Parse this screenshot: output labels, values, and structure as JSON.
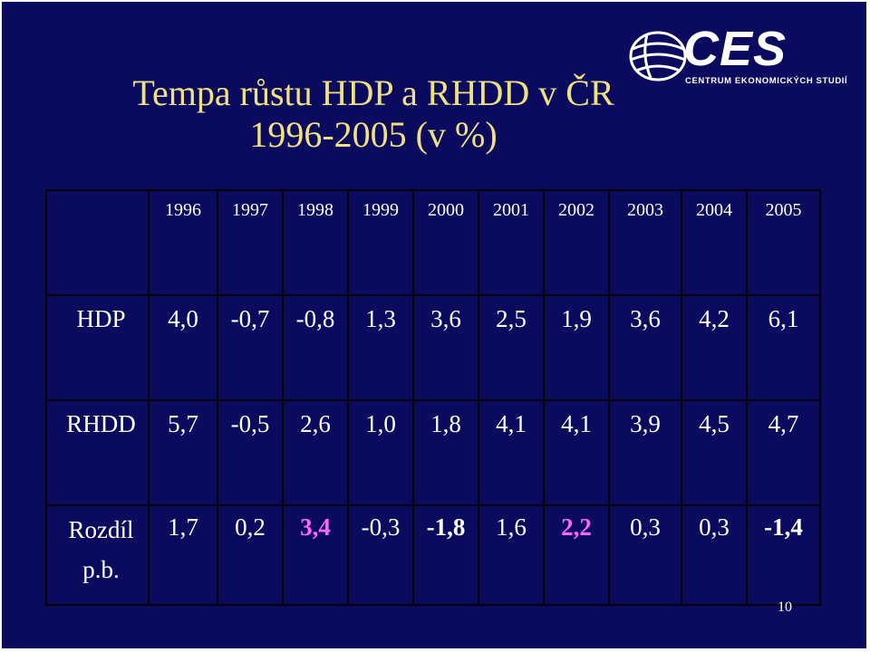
{
  "title": {
    "line1": "Tempa růstu HDP a RHDD v ČR",
    "line2": "1996-2005 (v %)"
  },
  "logo": {
    "name": "CES",
    "subtitle": "CENTRUM EKONOMICKÝCH STUDIÍ"
  },
  "table": {
    "years": [
      "1996",
      "1997",
      "1998",
      "1999",
      "2000",
      "2001",
      "2002",
      "2003",
      "2004",
      "2005"
    ],
    "rows": [
      {
        "label": "HDP",
        "values": [
          "4,0",
          "-0,7",
          "-0,8",
          "1,3",
          "3,6",
          "2,5",
          "1,9",
          "3,6",
          "4,2",
          "6,1"
        ]
      },
      {
        "label": "RHDD",
        "values": [
          "5,7",
          "-0,5",
          "2,6",
          "1,0",
          "1,8",
          "4,1",
          "4,1",
          "3,9",
          "4,5",
          "4,7"
        ]
      },
      {
        "label_line1": "Rozdíl",
        "label_line2": "p.b.",
        "values": [
          "1,7",
          "0,2",
          "3,4",
          "-0,3",
          "-1,8",
          "1,6",
          "2,2",
          "0,3",
          "0,3",
          "-1,4"
        ]
      }
    ]
  },
  "page_number": "10",
  "colors": {
    "background": "#0a0a5e",
    "title": "#f0e080",
    "text": "#ffffff",
    "highlight": "#ff66ff"
  }
}
